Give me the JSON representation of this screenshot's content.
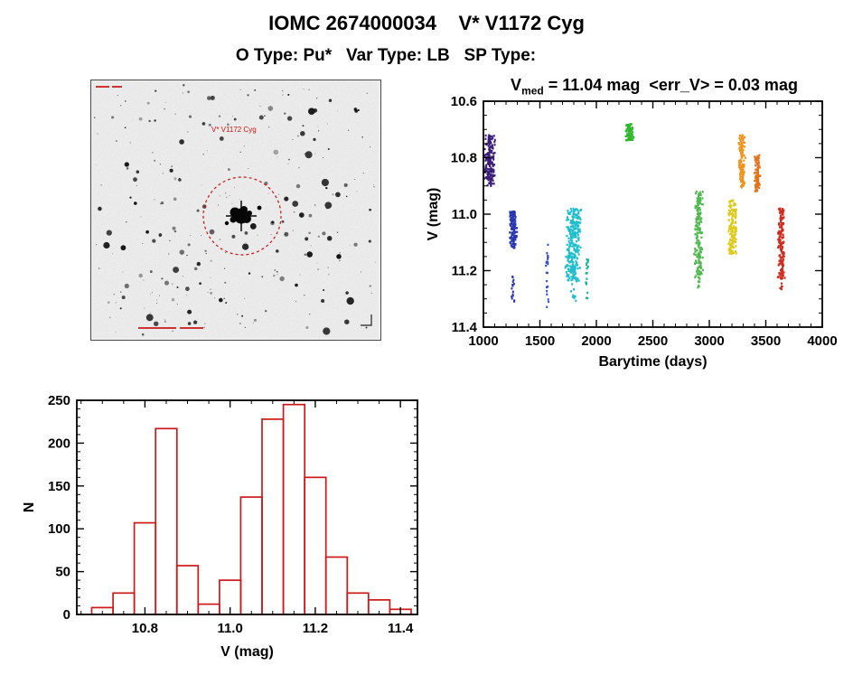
{
  "header": {
    "title": "IOMC 2674000034    V* V1172 Cyg",
    "subtitle": "O Type: Pu*   Var Type: LB   SP Type:"
  },
  "finder": {
    "label": "V* V1172 Cyg",
    "label_color": "#cc1111",
    "circle_color": "#cc1111"
  },
  "lightcurve": {
    "title_v": "V",
    "title_sub": "med",
    "title_rest": " = 11.04 mag  <err_V> = 0.03 mag",
    "v_med_mag": 11.04,
    "err_v_mag": 0.03
  },
  "chart_data": [
    {
      "type": "scatter",
      "name": "lightcurve",
      "title": "V_med = 11.04 mag <err_V> = 0.03 mag",
      "xlabel": "Barytime (days)",
      "ylabel": "V (mag)",
      "xlim": [
        1000,
        4000
      ],
      "ylim": [
        10.6,
        11.4
      ],
      "y_axis_inverted_for_magnitude": true,
      "xticks": [
        1000,
        1500,
        2000,
        2500,
        3000,
        3500,
        4000
      ],
      "yticks": [
        10.6,
        10.8,
        11.0,
        11.2,
        11.4
      ],
      "x_minor": 100,
      "y_minor": 0.05,
      "grid": false,
      "legend": false,
      "series": [
        {
          "name": "epoch-01",
          "color": "#3a1d78",
          "t_center": 1055,
          "t_spread": 55,
          "v_min": 10.72,
          "v_max": 10.9,
          "n": 190,
          "style": "dense"
        },
        {
          "name": "epoch-02",
          "color": "#2834b0",
          "t_center": 1262,
          "t_spread": 38,
          "v_min": 10.99,
          "v_max": 11.12,
          "n": 130,
          "style": "dense"
        },
        {
          "name": "epoch-02-tail",
          "color": "#2834b0",
          "t_center": 1262,
          "t_spread": 15,
          "v_min": 11.21,
          "v_max": 11.31,
          "n": 15,
          "style": "sparse"
        },
        {
          "name": "epoch-03",
          "color": "#3253cc",
          "t_center": 1565,
          "t_spread": 14,
          "v_min": 11.1,
          "v_max": 11.33,
          "n": 26,
          "style": "sparse"
        },
        {
          "name": "epoch-04",
          "color": "#1fbecd",
          "t_center": 1795,
          "t_spread": 75,
          "v_min": 10.98,
          "v_max": 11.24,
          "n": 280,
          "style": "dense"
        },
        {
          "name": "epoch-04-tail",
          "color": "#1fbecd",
          "t_center": 1800,
          "t_spread": 30,
          "v_min": 11.24,
          "v_max": 11.31,
          "n": 10,
          "style": "sparse"
        },
        {
          "name": "epoch-05",
          "color": "#12b78a",
          "t_center": 1918,
          "t_spread": 14,
          "v_min": 11.16,
          "v_max": 11.3,
          "n": 20,
          "style": "sparse"
        },
        {
          "name": "epoch-06",
          "color": "#2eb82e",
          "t_center": 2295,
          "t_spread": 38,
          "v_min": 10.68,
          "v_max": 10.74,
          "n": 70,
          "style": "dense"
        },
        {
          "name": "epoch-07",
          "color": "#52b852",
          "t_center": 2905,
          "t_spread": 42,
          "v_min": 10.92,
          "v_max": 11.23,
          "n": 180,
          "style": "dense"
        },
        {
          "name": "epoch-07-tail",
          "color": "#52b852",
          "t_center": 2905,
          "t_spread": 16,
          "v_min": 11.23,
          "v_max": 11.26,
          "n": 7,
          "style": "sparse"
        },
        {
          "name": "epoch-08",
          "color": "#ddca1c",
          "t_center": 3205,
          "t_spread": 42,
          "v_min": 10.95,
          "v_max": 11.14,
          "n": 150,
          "style": "dense"
        },
        {
          "name": "epoch-09",
          "color": "#f0941e",
          "t_center": 3290,
          "t_spread": 32,
          "v_min": 10.72,
          "v_max": 10.91,
          "n": 130,
          "style": "dense"
        },
        {
          "name": "epoch-10",
          "color": "#e4731a",
          "t_center": 3425,
          "t_spread": 28,
          "v_min": 10.79,
          "v_max": 10.92,
          "n": 100,
          "style": "dense"
        },
        {
          "name": "epoch-11",
          "color": "#d02b1e",
          "t_center": 3635,
          "t_spread": 34,
          "v_min": 10.98,
          "v_max": 11.23,
          "n": 170,
          "style": "dense"
        },
        {
          "name": "epoch-11-tail",
          "color": "#d02b1e",
          "t_center": 3635,
          "t_spread": 14,
          "v_min": 11.23,
          "v_max": 11.27,
          "n": 6,
          "style": "sparse"
        }
      ]
    },
    {
      "type": "bar",
      "name": "v-histogram",
      "title": "",
      "xlabel": "V (mag)",
      "ylabel": "N",
      "xlim": [
        10.64,
        11.44
      ],
      "ylim": [
        0,
        250
      ],
      "xticks": [
        10.8,
        11.0,
        11.2,
        11.4
      ],
      "yticks": [
        0,
        50,
        100,
        150,
        200,
        250
      ],
      "x_minor": 0.05,
      "y_minor": 10,
      "grid": false,
      "bin_start": 10.675,
      "bin_width": 0.05,
      "counts": [
        8,
        25,
        107,
        217,
        57,
        12,
        40,
        137,
        228,
        245,
        160,
        67,
        25,
        17,
        6
      ],
      "bar_color": "#cc1a1a"
    }
  ]
}
